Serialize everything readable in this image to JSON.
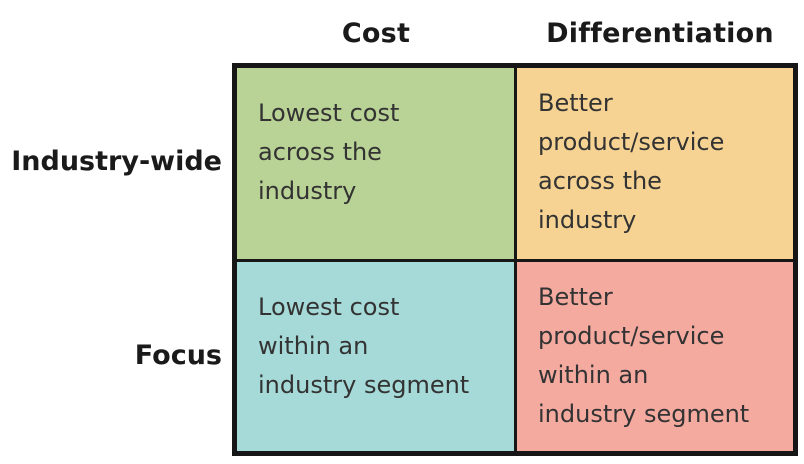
{
  "columns": {
    "cost": "Cost",
    "differentiation": "Differentiation"
  },
  "rows": {
    "industry_wide": "Industry-wide",
    "focus": "Focus"
  },
  "cells": {
    "industry_cost": "Lowest cost\nacross the\nindustry",
    "industry_differentiation": "Better\nproduct/service\nacross the\nindustry",
    "focus_cost": "Lowest cost\nwithin an\nindustry segment",
    "focus_differentiation": "Better\nproduct/service\nwithin an\nindustry segment"
  },
  "colors": {
    "industry_cost": "#b9d295",
    "industry_differentiation": "#f7d393",
    "focus_cost": "#a5dad8",
    "focus_differentiation": "#f5aaa0",
    "border": "#161616"
  }
}
